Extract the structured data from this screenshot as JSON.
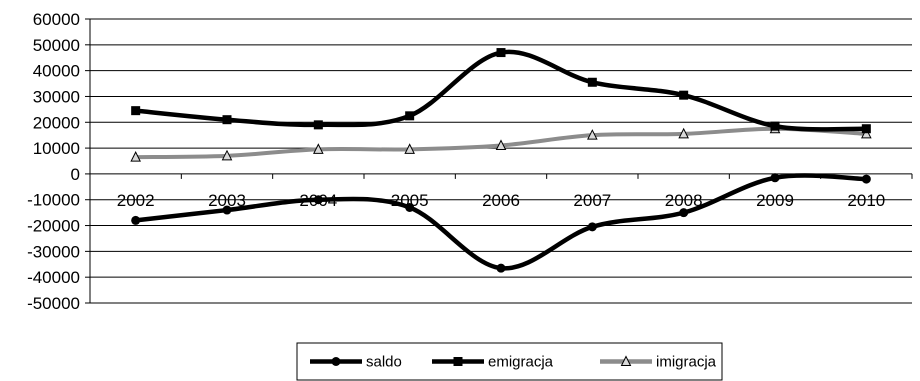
{
  "chart_data": {
    "type": "line",
    "categories": [
      "2002",
      "2003",
      "2004",
      "2005",
      "2006",
      "2007",
      "2008",
      "2009",
      "2010"
    ],
    "ylim": [
      -50000,
      60000
    ],
    "yticks": [
      "60000",
      "50000",
      "40000",
      "30000",
      "20000",
      "10000",
      "0",
      "-10000",
      "-20000",
      "-30000",
      "-40000",
      "-50000"
    ],
    "grid": true,
    "legend_position": "bottom",
    "smooth": true,
    "series": [
      {
        "name": "saldo",
        "color": "#000000",
        "marker": "circle",
        "values": [
          -18000,
          -14000,
          -10000,
          -13000,
          -36500,
          -20500,
          -15000,
          -1500,
          -2000
        ]
      },
      {
        "name": "emigracja",
        "color": "#000000",
        "marker": "square",
        "values": [
          24500,
          21000,
          19000,
          22500,
          47000,
          35500,
          30500,
          18500,
          17500
        ]
      },
      {
        "name": "imigracja",
        "color": "#8c8c8c",
        "marker": "triangle",
        "values": [
          6500,
          7000,
          9500,
          9500,
          11000,
          15000,
          15500,
          17500,
          15500
        ]
      }
    ]
  }
}
